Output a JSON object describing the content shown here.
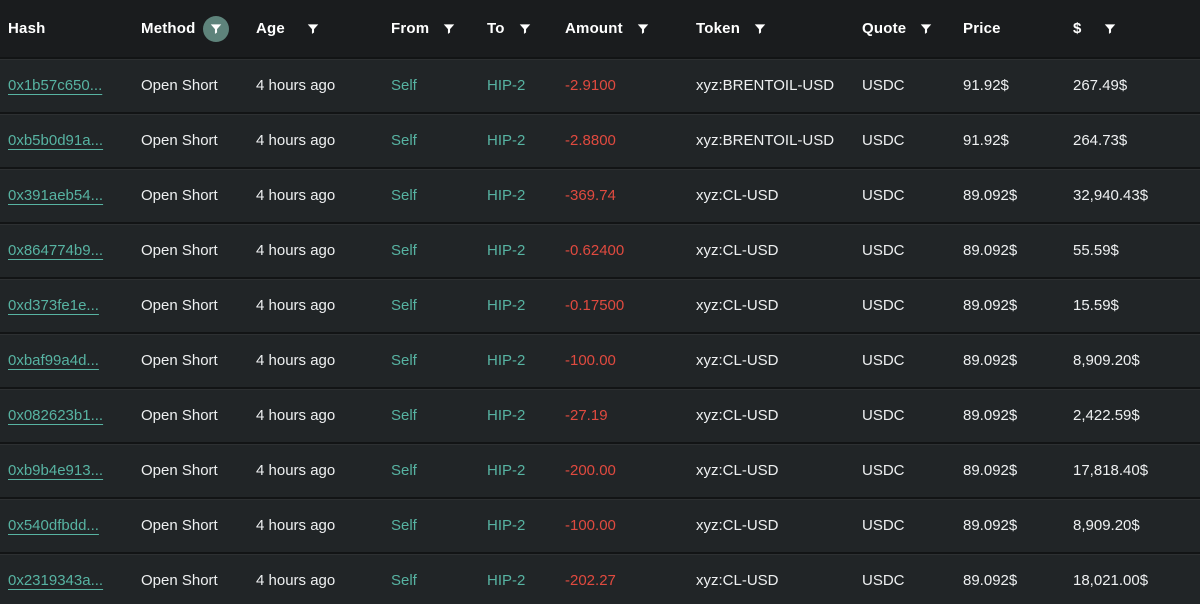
{
  "colors": {
    "background": "#1a1c1e",
    "row_background": "#212527",
    "link_teal": "#57b3a2",
    "amount_red": "#e04a3f",
    "active_filter_circle": "#5e837b",
    "text_white": "#eef0f1"
  },
  "table": {
    "columns": [
      {
        "key": "hash",
        "label": "Hash",
        "filter": false,
        "filter_active": false
      },
      {
        "key": "method",
        "label": "Method",
        "filter": true,
        "filter_active": true
      },
      {
        "key": "age",
        "label": "Age",
        "filter": true,
        "filter_active": false,
        "wide_gap": true
      },
      {
        "key": "from",
        "label": "From",
        "filter": true,
        "filter_active": false
      },
      {
        "key": "to",
        "label": "To",
        "filter": true,
        "filter_active": false
      },
      {
        "key": "amount",
        "label": "Amount",
        "filter": true,
        "filter_active": false
      },
      {
        "key": "token",
        "label": "Token",
        "filter": true,
        "filter_active": false
      },
      {
        "key": "quote",
        "label": "Quote",
        "filter": true,
        "filter_active": false
      },
      {
        "key": "price",
        "label": "Price",
        "filter": false,
        "filter_active": false
      },
      {
        "key": "usd",
        "label": "$",
        "filter": true,
        "filter_active": false,
        "wide_gap": true
      }
    ],
    "rows": [
      {
        "hash": "0x1b57c650...",
        "method": "Open Short",
        "age": "4 hours ago",
        "from": "Self",
        "to": "HIP-2",
        "amount": "-2.9100",
        "token": "xyz:BRENTOIL-USD",
        "quote": "USDC",
        "price": "91.92$",
        "usd": "267.49$"
      },
      {
        "hash": "0xb5b0d91a...",
        "method": "Open Short",
        "age": "4 hours ago",
        "from": "Self",
        "to": "HIP-2",
        "amount": "-2.8800",
        "token": "xyz:BRENTOIL-USD",
        "quote": "USDC",
        "price": "91.92$",
        "usd": "264.73$"
      },
      {
        "hash": "0x391aeb54...",
        "method": "Open Short",
        "age": "4 hours ago",
        "from": "Self",
        "to": "HIP-2",
        "amount": "-369.74",
        "token": "xyz:CL-USD",
        "quote": "USDC",
        "price": "89.092$",
        "usd": "32,940.43$"
      },
      {
        "hash": "0x864774b9...",
        "method": "Open Short",
        "age": "4 hours ago",
        "from": "Self",
        "to": "HIP-2",
        "amount": "-0.62400",
        "token": "xyz:CL-USD",
        "quote": "USDC",
        "price": "89.092$",
        "usd": "55.59$"
      },
      {
        "hash": "0xd373fe1e...",
        "method": "Open Short",
        "age": "4 hours ago",
        "from": "Self",
        "to": "HIP-2",
        "amount": "-0.17500",
        "token": "xyz:CL-USD",
        "quote": "USDC",
        "price": "89.092$",
        "usd": "15.59$"
      },
      {
        "hash": "0xbaf99a4d...",
        "method": "Open Short",
        "age": "4 hours ago",
        "from": "Self",
        "to": "HIP-2",
        "amount": "-100.00",
        "token": "xyz:CL-USD",
        "quote": "USDC",
        "price": "89.092$",
        "usd": "8,909.20$"
      },
      {
        "hash": "0x082623b1...",
        "method": "Open Short",
        "age": "4 hours ago",
        "from": "Self",
        "to": "HIP-2",
        "amount": "-27.19",
        "token": "xyz:CL-USD",
        "quote": "USDC",
        "price": "89.092$",
        "usd": "2,422.59$"
      },
      {
        "hash": "0xb9b4e913...",
        "method": "Open Short",
        "age": "4 hours ago",
        "from": "Self",
        "to": "HIP-2",
        "amount": "-200.00",
        "token": "xyz:CL-USD",
        "quote": "USDC",
        "price": "89.092$",
        "usd": "17,818.40$"
      },
      {
        "hash": "0x540dfbdd...",
        "method": "Open Short",
        "age": "4 hours ago",
        "from": "Self",
        "to": "HIP-2",
        "amount": "-100.00",
        "token": "xyz:CL-USD",
        "quote": "USDC",
        "price": "89.092$",
        "usd": "8,909.20$"
      },
      {
        "hash": "0x2319343a...",
        "method": "Open Short",
        "age": "4 hours ago",
        "from": "Self",
        "to": "HIP-2",
        "amount": "-202.27",
        "token": "xyz:CL-USD",
        "quote": "USDC",
        "price": "89.092$",
        "usd": "18,021.00$"
      }
    ]
  }
}
